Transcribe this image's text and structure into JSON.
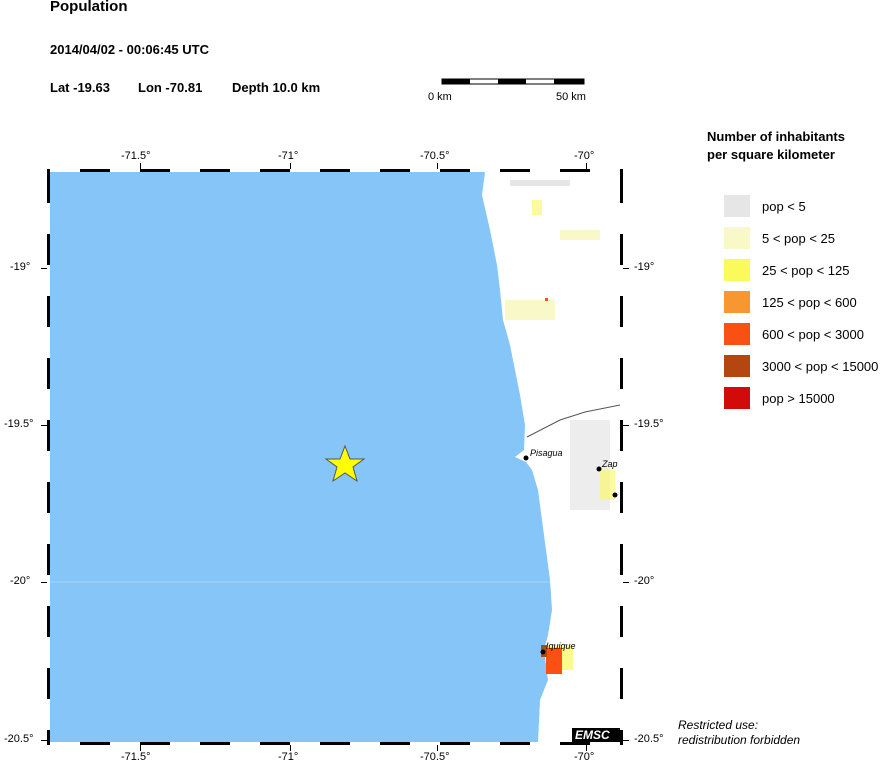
{
  "header": {
    "title": "Population",
    "datetime": "2014/04/02 - 00:06:45 UTC",
    "lat": "Lat -19.63",
    "lon": "Lon -70.81",
    "depth": "Depth  10.0 km"
  },
  "scale": {
    "start": "0 km",
    "end": "50 km"
  },
  "axes": {
    "lon_ticks": [
      "-71.5°",
      "-71°",
      "-70.5°",
      "-70°"
    ],
    "lat_ticks": [
      "-19°",
      "-19.5°",
      "-20°",
      "-20.5°"
    ]
  },
  "map": {
    "ocean_color": "#86c5f8",
    "land_color": "#ffffff",
    "epicenter": {
      "lat": -19.63,
      "lon": -70.81,
      "marker": "star-icon",
      "color": "#ffff00"
    },
    "places": [
      {
        "name": "Pisagua"
      },
      {
        "name": "Zap"
      },
      {
        "name": "Iquique"
      }
    ],
    "watermark": "EMSC"
  },
  "legend": {
    "title1": "Number of inhabitants",
    "title2": "per square kilometer",
    "items": [
      {
        "label": "pop < 5",
        "color": "#e6e6e6"
      },
      {
        "label": "5 < pop < 25",
        "color": "#f8f8c8"
      },
      {
        "label": "25 < pop < 125",
        "color": "#fafa5a"
      },
      {
        "label": "125 < pop < 600",
        "color": "#f89632"
      },
      {
        "label": "600 < pop < 3000",
        "color": "#fa5014"
      },
      {
        "label": "3000 < pop < 15000",
        "color": "#b4460f"
      },
      {
        "label": "pop > 15000",
        "color": "#d20a0a"
      }
    ]
  },
  "notice": {
    "line1": "Restricted use:",
    "line2": "redistribution forbidden"
  }
}
